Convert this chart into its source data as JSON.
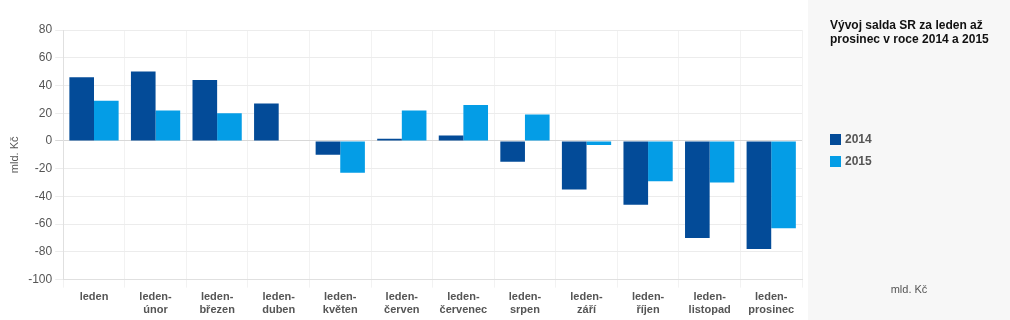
{
  "chart_data": {
    "type": "bar",
    "title": "Vývoj salda SR za leden až prosinec v roce 2014 a 2015",
    "ylabel": "mld. Kč",
    "annotations": [
      "mld. Kč"
    ],
    "categories": [
      "leden",
      "leden-únor",
      "leden-březen",
      "leden-duben",
      "leden-květen",
      "leden-červen",
      "leden-červenec",
      "leden-srpen",
      "leden-září",
      "leden-říjen",
      "leden-listopad",
      "leden-prosinec"
    ],
    "series": [
      {
        "name": "2014",
        "color": "#034b98",
        "values": [
          46,
          50,
          44,
          27,
          -10,
          1.5,
          4,
          -15,
          -35,
          -46,
          -70,
          -78
        ]
      },
      {
        "name": "2015",
        "color": "#049de6",
        "values": [
          29,
          22,
          20,
          null,
          -23,
          22,
          26,
          19,
          -3,
          -29,
          -30,
          -63
        ]
      }
    ],
    "ylim": [
      -100,
      80
    ],
    "yticks": [
      -100,
      -80,
      -60,
      -40,
      -20,
      0,
      20,
      40,
      60,
      80
    ],
    "grid": true,
    "legend": "right"
  }
}
